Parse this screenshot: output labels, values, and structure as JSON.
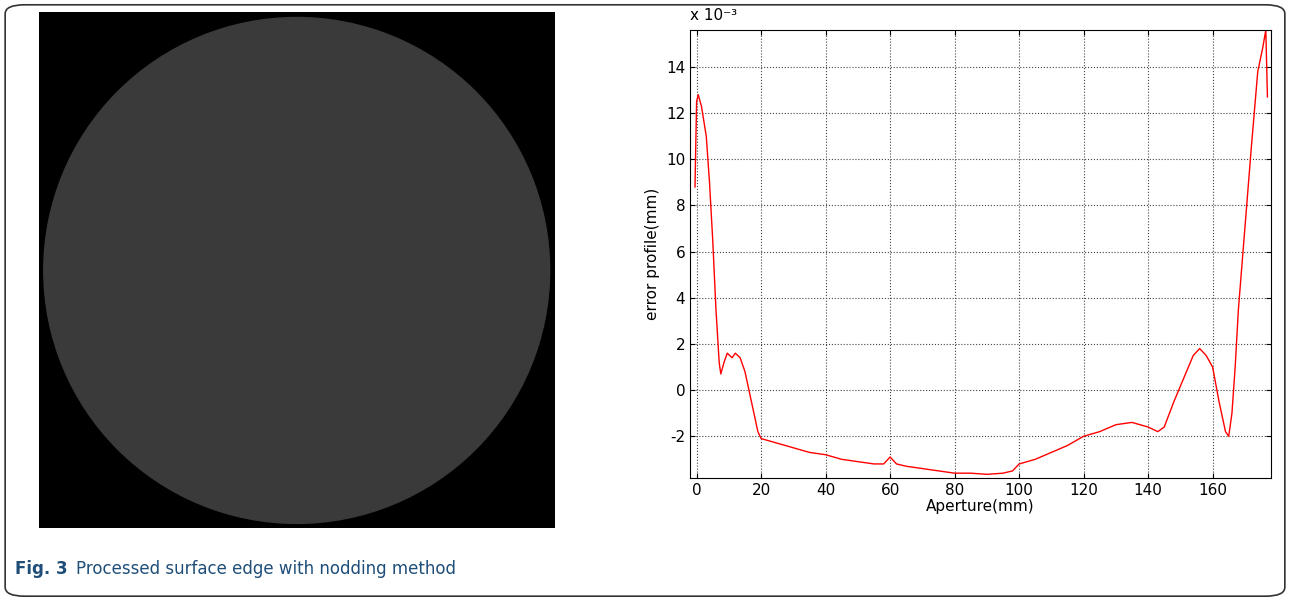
{
  "chart_data": {
    "type": "line",
    "xlabel": "Aperture(mm)",
    "ylabel": "error profile(mm)",
    "annotations": [
      "x 10⁻³"
    ],
    "x": [
      -0.5,
      0,
      0.5,
      1.5,
      3,
      4,
      5,
      6,
      7,
      7.5,
      8.5,
      9.5,
      11,
      12,
      13.5,
      15,
      17,
      19,
      20,
      25,
      30,
      35,
      40,
      45,
      50,
      55,
      58,
      60,
      62,
      65,
      70,
      75,
      80,
      85,
      90,
      95,
      98,
      100,
      105,
      110,
      115,
      120,
      125,
      130,
      135,
      140,
      143,
      145,
      148,
      151,
      154,
      156,
      158,
      160,
      162,
      164,
      165,
      166,
      167,
      168,
      170,
      172,
      174,
      175.5,
      176.5,
      177
    ],
    "values": [
      8.8,
      12.5,
      12.8,
      12.3,
      11,
      9,
      6.5,
      3.5,
      1.2,
      0.7,
      1.2,
      1.6,
      1.4,
      1.6,
      1.4,
      0.8,
      -0.5,
      -1.8,
      -2.1,
      -2.3,
      -2.5,
      -2.7,
      -2.8,
      -3.0,
      -3.1,
      -3.2,
      -3.2,
      -2.9,
      -3.2,
      -3.3,
      -3.4,
      -3.5,
      -3.6,
      -3.6,
      -3.65,
      -3.6,
      -3.5,
      -3.2,
      -3.0,
      -2.7,
      -2.4,
      -2.0,
      -1.8,
      -1.5,
      -1.4,
      -1.6,
      -1.8,
      -1.6,
      -0.5,
      0.5,
      1.5,
      1.8,
      1.5,
      1.0,
      -0.5,
      -1.8,
      -2.0,
      -1.0,
      1.0,
      3.5,
      7,
      10.5,
      13.8,
      14.8,
      15.6,
      12.7
    ],
    "color": "#ff0000",
    "xlim": [
      -2,
      178
    ],
    "xticks": [
      0,
      20,
      40,
      60,
      80,
      100,
      120,
      140,
      160
    ],
    "ylim": [
      -3.8,
      15.6
    ],
    "yticks": [
      -2,
      0,
      2,
      4,
      6,
      8,
      10,
      12,
      14
    ],
    "grid": true
  },
  "caption": {
    "label": "Fig. 3",
    "text": "Processed surface edge with nodding method"
  }
}
